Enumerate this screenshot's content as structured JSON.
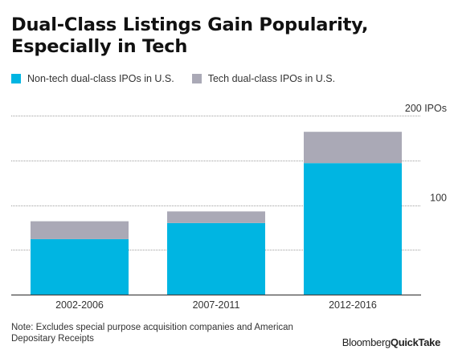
{
  "title": "Dual-Class Listings Gain Popularity, Especially in Tech",
  "note": "Note: Excludes special purpose acquisition companies and American Depositary Receipts",
  "logo": {
    "part1": "Bloomberg",
    "part2": "QuickTake"
  },
  "colors": {
    "non_tech": "#00b5e2",
    "tech": "#aaa9b6",
    "grid": "#9e9e9e",
    "axis": "#444444"
  },
  "chart_data": {
    "type": "bar",
    "stacked": true,
    "categories": [
      "2002-2006",
      "2007-2011",
      "2012-2016"
    ],
    "series": [
      {
        "name": "Non-tech dual-class IPOs in U.S.",
        "values": [
          62,
          80,
          147
        ]
      },
      {
        "name": "Tech dual-class IPOs in U.S.",
        "values": [
          20,
          13,
          35
        ]
      }
    ],
    "ylim": [
      0,
      210
    ],
    "y_ticks": [
      {
        "value": 100,
        "label": "100"
      },
      {
        "value": 200,
        "label": "200 IPOs"
      }
    ],
    "grid_values": [
      50,
      100,
      150,
      200
    ],
    "legend_position": "top-left",
    "xlabel": "",
    "ylabel": ""
  }
}
